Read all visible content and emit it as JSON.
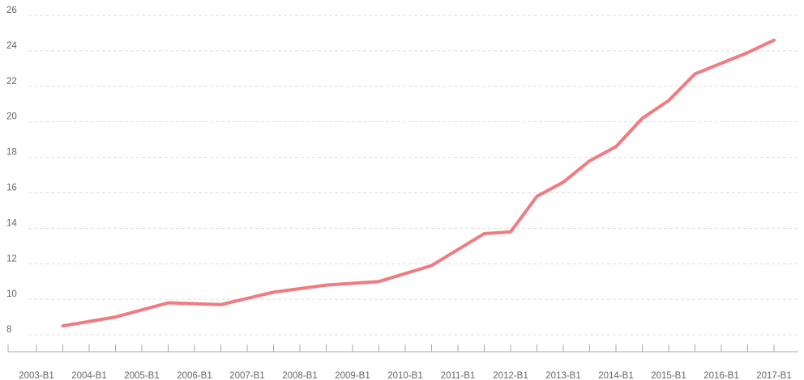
{
  "chart_data": {
    "type": "line",
    "categories": [
      "2003-B1",
      null,
      "2004-B1",
      null,
      "2005-B1",
      null,
      "2006-B1",
      null,
      "2007-B1",
      null,
      "2008-B1",
      null,
      "2009-B1",
      null,
      "2010-B1",
      null,
      "2011-B1",
      null,
      "2012-B1",
      null,
      "2013-B1",
      null,
      "2014-B1",
      null,
      "2015-B1",
      null,
      "2016-B1",
      null,
      "2017-B1"
    ],
    "values": [
      null,
      8.5,
      8.75,
      9.0,
      9.4,
      9.8,
      9.75,
      9.7,
      10.05,
      10.4,
      10.6,
      10.8,
      10.9,
      11.0,
      11.45,
      11.9,
      12.8,
      13.7,
      13.8,
      15.8,
      16.6,
      17.8,
      18.6,
      20.2,
      21.2,
      22.7,
      23.3,
      23.9,
      24.6
    ],
    "color": "#f07b80",
    "ylim": [
      7,
      26
    ],
    "yticks": [
      8,
      10,
      12,
      14,
      16,
      18,
      20,
      22,
      24,
      26
    ],
    "grid": true
  }
}
